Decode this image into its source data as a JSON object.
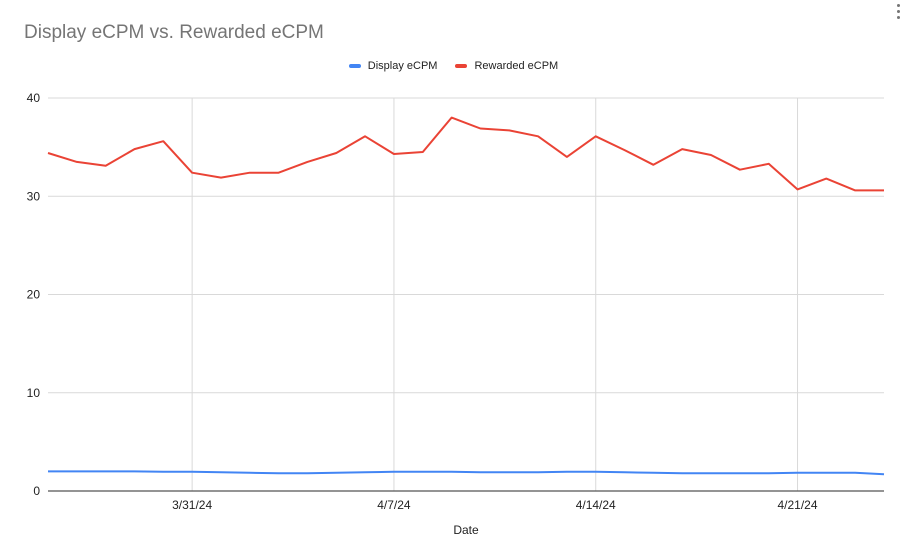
{
  "chart_data": {
    "type": "line",
    "title": "Display eCPM vs. Rewarded eCPM",
    "xlabel": "Date",
    "ylabel": "",
    "ylim": [
      0,
      40
    ],
    "yticks": [
      0,
      10,
      20,
      30,
      40
    ],
    "xtick_labels": [
      "3/31/24",
      "4/7/24",
      "4/14/24",
      "4/21/24"
    ],
    "grid": true,
    "legend_position": "top",
    "x": [
      "3/26/24",
      "3/27/24",
      "3/28/24",
      "3/29/24",
      "3/30/24",
      "3/31/24",
      "4/1/24",
      "4/2/24",
      "4/3/24",
      "4/4/24",
      "4/5/24",
      "4/6/24",
      "4/7/24",
      "4/8/24",
      "4/9/24",
      "4/10/24",
      "4/11/24",
      "4/12/24",
      "4/13/24",
      "4/14/24",
      "4/15/24",
      "4/16/24",
      "4/17/24",
      "4/18/24",
      "4/19/24",
      "4/20/24",
      "4/21/24",
      "4/22/24",
      "4/23/24",
      "4/24/24"
    ],
    "series": [
      {
        "name": "Display eCPM",
        "color": "#4285f4",
        "values": [
          2.0,
          2.0,
          2.0,
          2.0,
          1.95,
          1.95,
          1.9,
          1.85,
          1.8,
          1.8,
          1.85,
          1.9,
          1.95,
          1.95,
          1.95,
          1.9,
          1.9,
          1.9,
          1.95,
          1.95,
          1.9,
          1.85,
          1.8,
          1.8,
          1.8,
          1.8,
          1.85,
          1.85,
          1.85,
          1.7
        ]
      },
      {
        "name": "Rewarded eCPM",
        "color": "#ea4335",
        "values": [
          34.4,
          33.5,
          33.1,
          34.8,
          35.6,
          32.4,
          31.9,
          32.4,
          32.4,
          33.5,
          34.4,
          36.1,
          34.3,
          34.5,
          38.0,
          36.9,
          36.7,
          36.1,
          34.0,
          36.1,
          34.7,
          33.2,
          34.8,
          34.2,
          32.7,
          33.3,
          30.7,
          31.8,
          30.6,
          30.6
        ]
      }
    ]
  },
  "header": {
    "title": "Display eCPM vs. Rewarded eCPM",
    "menu_icon": "more-vert-icon"
  },
  "legend": [
    {
      "label": "Display eCPM",
      "color": "#4285f4"
    },
    {
      "label": "Rewarded eCPM",
      "color": "#ea4335"
    }
  ]
}
